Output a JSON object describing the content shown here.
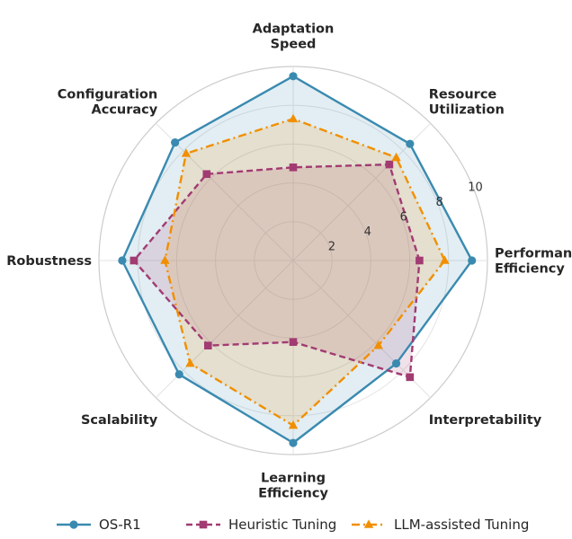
{
  "chart_data": {
    "type": "radar",
    "axes": [
      [
        "Performance",
        "Efficiency"
      ],
      [
        "Resource",
        "Utilization"
      ],
      [
        "Adaptation",
        "Speed"
      ],
      [
        "Configuration",
        "Accuracy"
      ],
      [
        "Robustness"
      ],
      [
        "Scalability"
      ],
      [
        "Learning",
        "Efficiency"
      ],
      [
        "Interpretability"
      ]
    ],
    "rlim": [
      0,
      10
    ],
    "rticks": [
      2,
      4,
      6,
      8,
      10
    ],
    "rtick_labels": [
      "2",
      "4",
      "6",
      "8",
      "10"
    ],
    "series": [
      {
        "name": "OS-R1",
        "values": [
          9.2,
          8.5,
          9.5,
          8.6,
          8.8,
          8.3,
          9.4,
          7.5
        ],
        "color": "#3a8ab0",
        "fill": "#3a8ab0",
        "marker": "circle",
        "dash": "solid"
      },
      {
        "name": "Heuristic Tuning",
        "values": [
          6.5,
          7.0,
          4.8,
          6.3,
          8.2,
          6.2,
          4.2,
          8.5
        ],
        "color": "#a23b72",
        "fill": "#a23b72",
        "marker": "square",
        "dash": "dashed"
      },
      {
        "name": "LLM-assisted Tuning",
        "values": [
          7.8,
          7.5,
          7.3,
          7.8,
          6.6,
          7.5,
          8.5,
          6.2
        ],
        "color": "#f18f01",
        "fill": "#f18f01",
        "marker": "triangle",
        "dash": "dashdot"
      }
    ],
    "legend_position": "bottom"
  }
}
